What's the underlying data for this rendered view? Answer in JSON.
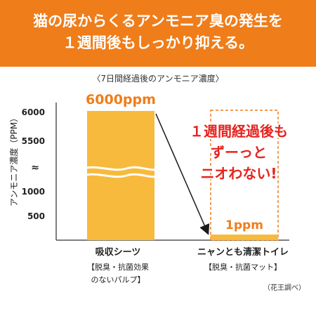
{
  "headline": {
    "line1": "猫の尿からくるアンモニア臭の発生を",
    "line2": "１週間後もしっかり抑える。"
  },
  "colors": {
    "accent": "#ef7d1a",
    "bar_fill": "#f8ba3c",
    "callout": "#e6231d",
    "axis": "#555555"
  },
  "chart_data": {
    "type": "bar",
    "title": "〈7日間経過後のアンモニア濃度〉",
    "ylabel": "アンモニア濃度（PPM）",
    "y_axis_break": true,
    "y_ticks": [
      "6000",
      "5500",
      "≈",
      "1000",
      "500"
    ],
    "categories": [
      {
        "name": "吸収シーツ",
        "sub1": "【脱臭・抗菌効果",
        "sub2": "のないパルプ】"
      },
      {
        "name": "ニャンとも清潔トイレ",
        "sub1": "【脱臭・抗菌マット】",
        "sub2": ""
      }
    ],
    "values": [
      6000,
      1
    ],
    "value_labels": [
      "6000ppm",
      "1ppm"
    ],
    "annotation": [
      "１週間経過後も",
      "ずーっと",
      "ニオわない!"
    ],
    "source": "（花王調べ）",
    "grid": false
  }
}
